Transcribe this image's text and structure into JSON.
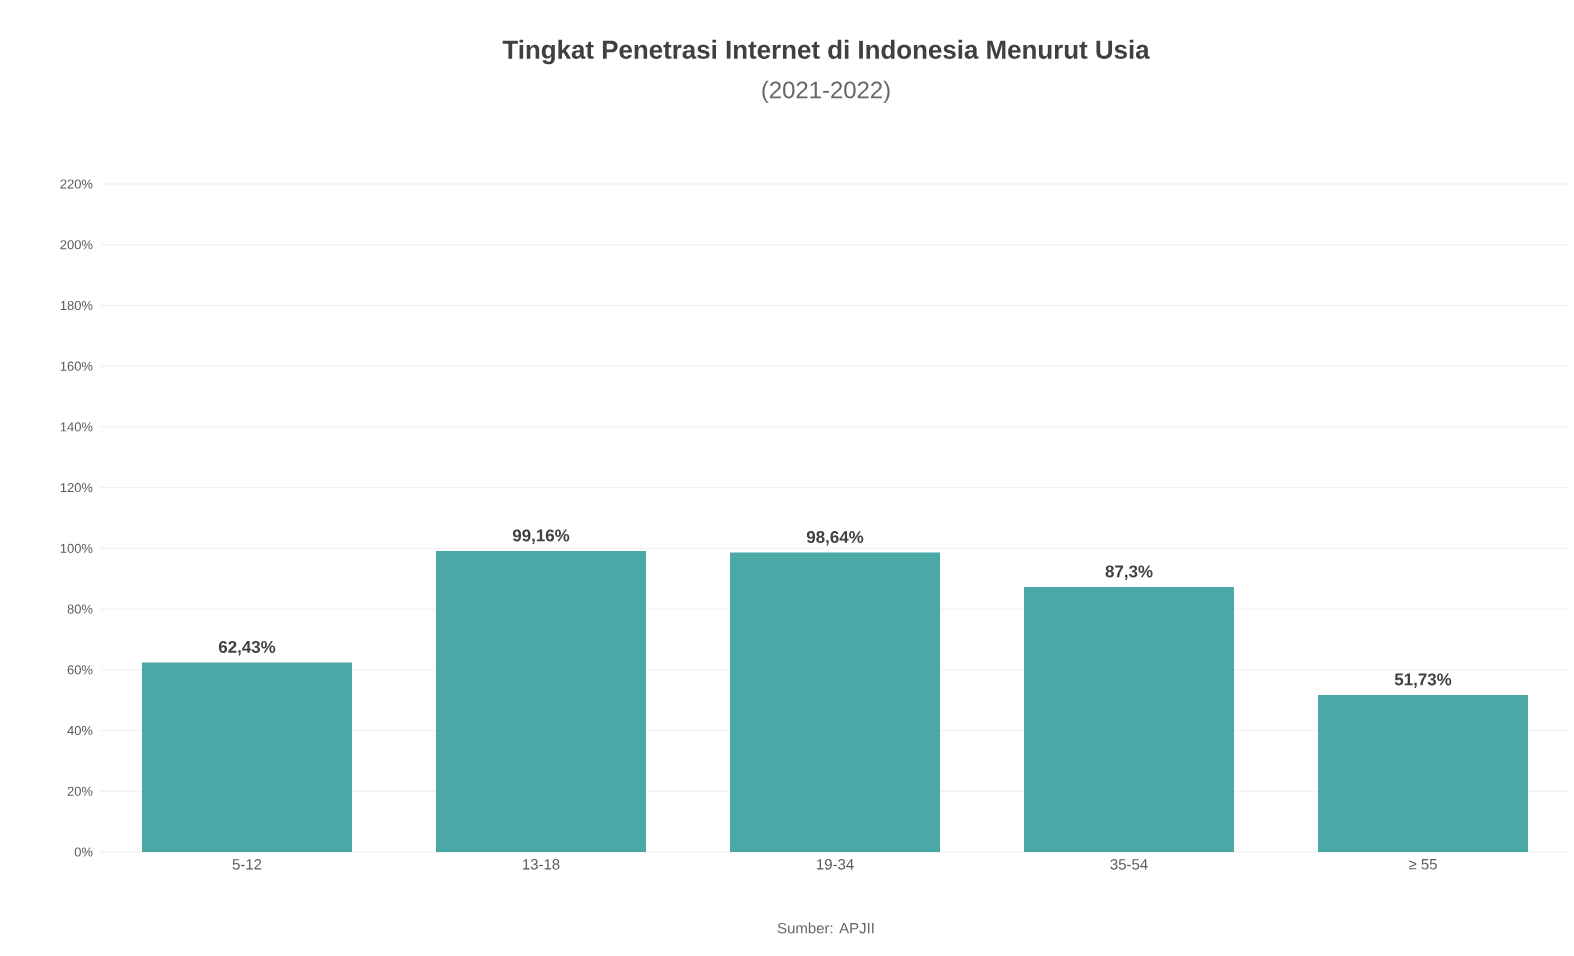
{
  "chart_data": {
    "type": "bar",
    "title": "Tingkat Penetrasi Internet di Indonesia Menurut Usia",
    "subtitle": "(2021-2022)",
    "categories": [
      "5-12",
      "13-18",
      "19-34",
      "35-54",
      "≥ 55"
    ],
    "values": [
      62.43,
      99.16,
      98.64,
      87.3,
      51.73
    ],
    "value_labels": [
      "62,43%",
      "99,16%",
      "98,64%",
      "87,3%",
      "51,73%"
    ],
    "color": "#4aa9a6",
    "ylim": [
      0,
      220
    ],
    "yticks": [
      {
        "value": 0,
        "label": "0%"
      },
      {
        "value": 20,
        "label": "20%"
      },
      {
        "value": 40,
        "label": "40%"
      },
      {
        "value": 60,
        "label": "60%"
      },
      {
        "value": 80,
        "label": "80%"
      },
      {
        "value": 100,
        "label": "100%"
      },
      {
        "value": 120,
        "label": "120%"
      },
      {
        "value": 140,
        "label": "140%"
      },
      {
        "value": 160,
        "label": "160%"
      },
      {
        "value": 180,
        "label": "180%"
      },
      {
        "value": 200,
        "label": "200%"
      },
      {
        "value": 220,
        "label": "220%"
      }
    ],
    "grid": "y",
    "annotations": [
      "Sumber: APJII"
    ]
  }
}
